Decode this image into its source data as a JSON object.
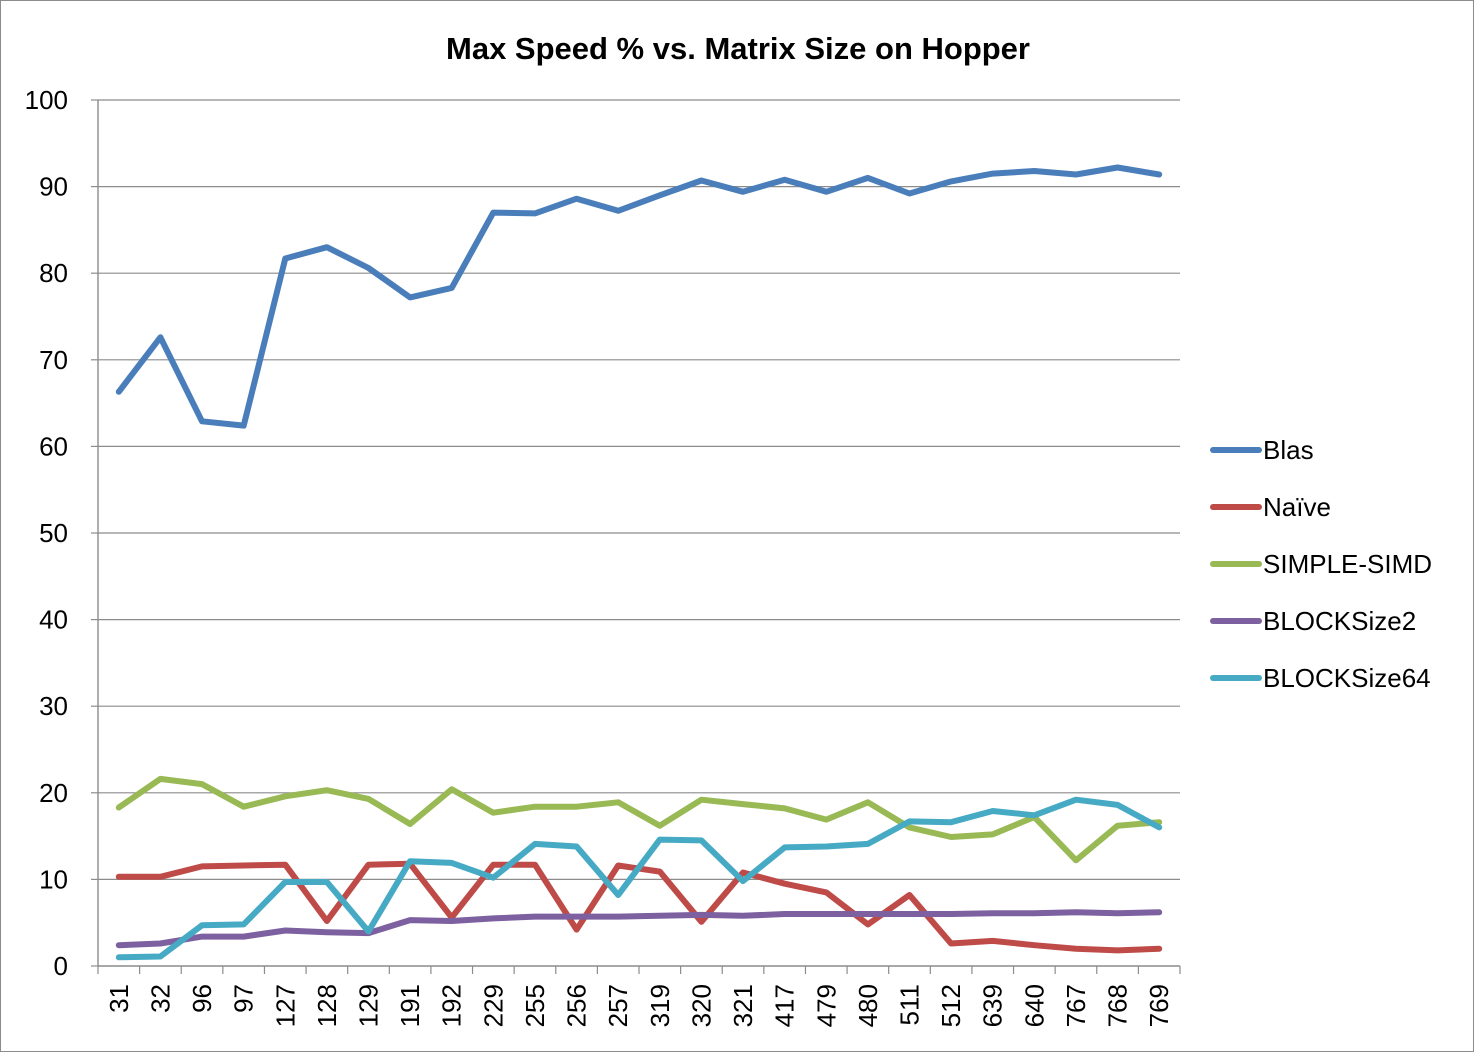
{
  "chart_data": {
    "type": "line",
    "title": "Max Speed % vs. Matrix Size on Hopper",
    "xlabel": "",
    "ylabel": "",
    "ylim": [
      0,
      100
    ],
    "yticks": [
      "0",
      "10",
      "20",
      "30",
      "40",
      "50",
      "60",
      "70",
      "80",
      "90",
      "100"
    ],
    "grid": "horizontal",
    "legend_position": "right",
    "categories": [
      "31",
      "32",
      "96",
      "97",
      "127",
      "128",
      "129",
      "191",
      "192",
      "229",
      "255",
      "256",
      "257",
      "319",
      "320",
      "321",
      "417",
      "479",
      "480",
      "511",
      "512",
      "639",
      "640",
      "767",
      "768",
      "769"
    ],
    "series": [
      {
        "name": "Blas",
        "color": "#4a7ebb",
        "values": [
          66.3,
          72.6,
          62.9,
          62.4,
          81.7,
          83.0,
          80.6,
          77.2,
          78.3,
          87.0,
          86.9,
          88.6,
          87.2,
          89.0,
          90.7,
          89.4,
          90.8,
          89.4,
          91.0,
          89.2,
          90.6,
          91.5,
          91.8,
          91.4,
          92.2,
          91.4
        ]
      },
      {
        "name": "Naïve",
        "color": "#be4b48",
        "values": [
          10.3,
          10.3,
          11.5,
          11.6,
          11.7,
          5.2,
          11.7,
          11.8,
          5.6,
          11.7,
          11.7,
          4.2,
          11.6,
          10.9,
          5.1,
          10.8,
          9.5,
          8.5,
          4.8,
          8.2,
          2.6,
          2.9,
          2.4,
          2.0,
          1.8,
          2.0
        ]
      },
      {
        "name": "SIMPLE-SIMD",
        "color": "#98b954",
        "values": [
          18.3,
          21.6,
          21.0,
          18.4,
          19.6,
          20.3,
          19.3,
          16.4,
          20.4,
          17.7,
          18.4,
          18.4,
          18.9,
          16.2,
          19.2,
          18.7,
          18.2,
          16.9,
          18.9,
          16.0,
          14.9,
          15.2,
          17.2,
          12.2,
          16.2,
          16.6
        ]
      },
      {
        "name": "BLOCKSize2",
        "color": "#7d60a0",
        "values": [
          2.4,
          2.6,
          3.4,
          3.4,
          4.1,
          3.9,
          3.8,
          5.3,
          5.2,
          5.5,
          5.7,
          5.7,
          5.7,
          5.8,
          5.9,
          5.8,
          6.0,
          6.0,
          6.0,
          6.0,
          6.0,
          6.1,
          6.1,
          6.2,
          6.1,
          6.2
        ]
      },
      {
        "name": "BLOCKSize64",
        "color": "#46aac5",
        "values": [
          1.0,
          1.1,
          4.7,
          4.8,
          9.7,
          9.7,
          4.0,
          12.1,
          11.9,
          10.2,
          14.1,
          13.8,
          8.2,
          14.6,
          14.5,
          9.8,
          13.7,
          13.8,
          14.1,
          16.7,
          16.6,
          17.9,
          17.4,
          19.2,
          18.6,
          16.0
        ]
      }
    ]
  }
}
